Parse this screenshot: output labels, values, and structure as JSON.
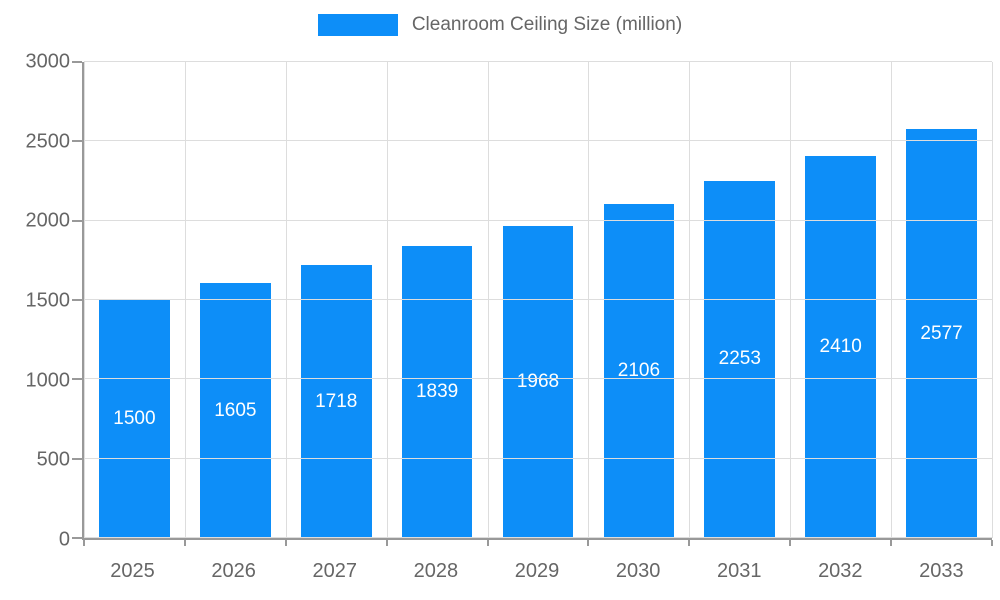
{
  "chart_data": {
    "type": "bar",
    "title": "Cleanroom Ceiling Size (million)",
    "categories": [
      "2025",
      "2026",
      "2027",
      "2028",
      "2029",
      "2030",
      "2031",
      "2032",
      "2033"
    ],
    "values": [
      1500,
      1605,
      1718,
      1839,
      1968,
      2106,
      2253,
      2410,
      2577
    ],
    "xlabel": "",
    "ylabel": "",
    "ylim": [
      0,
      3000
    ],
    "yticks": [
      0,
      500,
      1000,
      1500,
      2000,
      2500,
      3000
    ],
    "grid": true,
    "legend_position": "top",
    "colors": {
      "bar": "#0d8ef8",
      "value_label": "#ffffff",
      "grid": "#dddddd",
      "axis": "#999999",
      "text": "#666666"
    }
  }
}
